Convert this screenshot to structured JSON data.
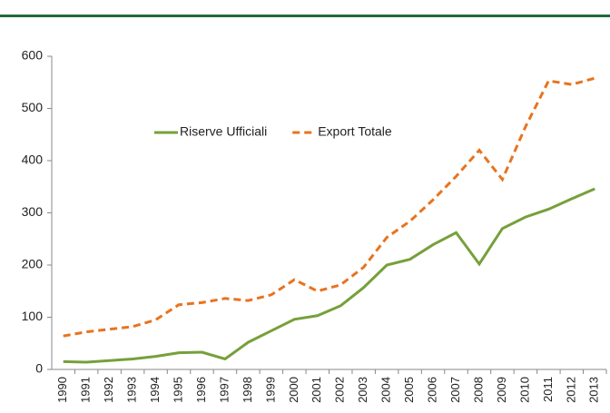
{
  "chart_data": {
    "type": "line",
    "categories": [
      "1990",
      "1991",
      "1992",
      "1993",
      "1994",
      "1995",
      "1996",
      "1997",
      "1998",
      "1999",
      "2000",
      "2001",
      "2002",
      "2003",
      "2004",
      "2005",
      "2006",
      "2007",
      "2008",
      "2009",
      "2010",
      "2011",
      "2012",
      "2013"
    ],
    "series": [
      {
        "name": "Riserve Ufficiali",
        "color": "#76a03a",
        "dashed": false,
        "values": [
          15,
          14,
          17,
          20,
          25,
          32,
          33,
          20,
          52,
          74,
          96,
          103,
          122,
          157,
          200,
          211,
          239,
          262,
          202,
          270,
          292,
          307,
          327,
          346
        ]
      },
      {
        "name": "Export Totale",
        "color": "#e8731f",
        "dashed": true,
        "values": [
          64,
          72,
          77,
          82,
          95,
          124,
          128,
          136,
          132,
          143,
          172,
          150,
          162,
          196,
          253,
          284,
          325,
          370,
          420,
          364,
          465,
          553,
          546,
          558
        ]
      }
    ],
    "ylim": [
      0,
      600
    ],
    "yticks": [
      0,
      100,
      200,
      300,
      400,
      500,
      600
    ],
    "grid": false
  }
}
